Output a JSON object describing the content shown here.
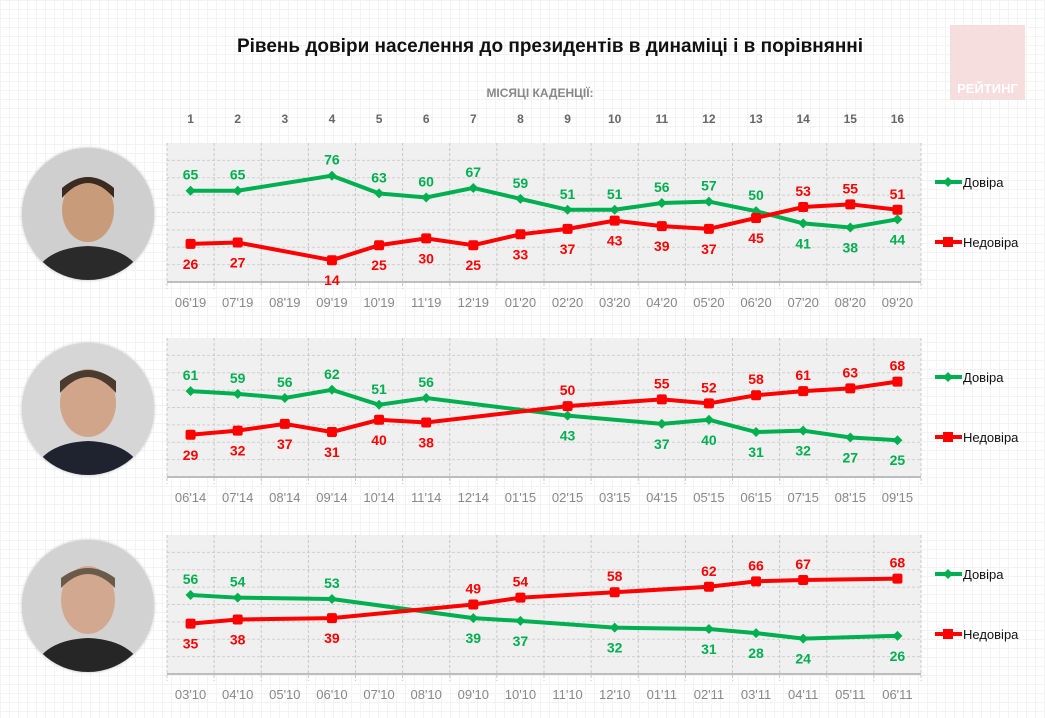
{
  "header": {
    "title": "Рівень довіри населення до президентів в динаміці і в порівнянні",
    "subtitle": "МІСЯЦІ КАДЕНЦІЇ:",
    "logo_text": "РЕЙТИНГ"
  },
  "months": [
    "1",
    "2",
    "3",
    "4",
    "5",
    "6",
    "7",
    "8",
    "9",
    "10",
    "11",
    "12",
    "13",
    "14",
    "15",
    "16"
  ],
  "colors": {
    "trust": "#00b050",
    "distrust": "#ff0000",
    "plot_bg": "#f0f0f0"
  },
  "chart_data": [
    {
      "type": "line",
      "ylim": [
        -2,
        100
      ],
      "grid": true,
      "legend": "right",
      "categories": [
        "06'19",
        "07'19",
        "08'19",
        "09'19",
        "10'19",
        "11'19",
        "12'19",
        "01'20",
        "02'20",
        "03'20",
        "04'20",
        "05'20",
        "06'20",
        "07'20",
        "08'20",
        "09'20"
      ],
      "series": [
        {
          "name": "Довіра",
          "values": [
            65,
            65,
            null,
            76,
            63,
            60,
            67,
            59,
            51,
            51,
            56,
            57,
            50,
            41,
            38,
            44
          ]
        },
        {
          "name": "Недовіра",
          "values": [
            26,
            27,
            null,
            14,
            25,
            30,
            25,
            33,
            37,
            43,
            39,
            37,
            45,
            53,
            55,
            51
          ]
        }
      ]
    },
    {
      "type": "line",
      "ylim": [
        -2,
        100
      ],
      "grid": true,
      "legend": "right",
      "categories": [
        "06'14",
        "07'14",
        "08'14",
        "09'14",
        "10'14",
        "11'14",
        "12'14",
        "01'15",
        "02'15",
        "03'15",
        "04'15",
        "05'15",
        "06'15",
        "07'15",
        "08'15",
        "09'15"
      ],
      "series": [
        {
          "name": "Довіра",
          "values": [
            61,
            59,
            56,
            62,
            51,
            56,
            null,
            null,
            43,
            null,
            37,
            40,
            31,
            32,
            27,
            25
          ]
        },
        {
          "name": "Недовіра",
          "values": [
            29,
            32,
            37,
            31,
            40,
            38,
            null,
            null,
            50,
            null,
            55,
            52,
            58,
            61,
            63,
            68
          ]
        }
      ]
    },
    {
      "type": "line",
      "ylim": [
        -2,
        100
      ],
      "grid": true,
      "legend": "right",
      "categories": [
        "03'10",
        "04'10",
        "05'10",
        "06'10",
        "07'10",
        "08'10",
        "09'10",
        "10'10",
        "11'10",
        "12'10",
        "01'11",
        "02'11",
        "03'11",
        "04'11",
        "05'11",
        "06'11"
      ],
      "series": [
        {
          "name": "Довіра",
          "values": [
            56,
            54,
            null,
            53,
            null,
            null,
            39,
            37,
            null,
            32,
            null,
            31,
            28,
            24,
            null,
            26
          ]
        },
        {
          "name": "Недовіра",
          "values": [
            35,
            38,
            null,
            39,
            null,
            null,
            49,
            54,
            null,
            58,
            null,
            62,
            66,
            67,
            null,
            68
          ]
        }
      ]
    }
  ]
}
